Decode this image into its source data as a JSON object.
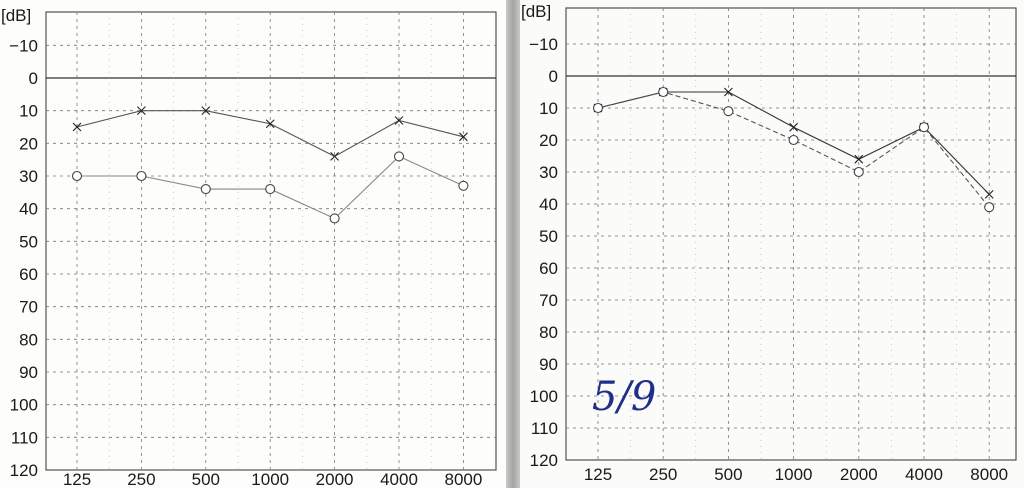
{
  "chart_data": [
    {
      "type": "line",
      "title": "",
      "ylabel": "[dB]",
      "xlabel": "",
      "x_scale": "log",
      "y_inverted": true,
      "ylim": [
        -20,
        120
      ],
      "y_ticks": [
        "−10",
        "0",
        "10",
        "20",
        "30",
        "40",
        "50",
        "60",
        "70",
        "80",
        "90",
        "100",
        "110",
        "120"
      ],
      "y_tick_values": [
        -10,
        0,
        10,
        20,
        30,
        40,
        50,
        60,
        70,
        80,
        90,
        100,
        110,
        120
      ],
      "categories": [
        "125",
        "250",
        "500",
        "1000",
        "2000",
        "4000",
        "8000"
      ],
      "grid": true,
      "reference_line": 0,
      "series": [
        {
          "marker": "x",
          "style": "solid",
          "color": "#555555",
          "values": [
            15,
            10,
            10,
            14,
            24,
            13,
            18
          ]
        },
        {
          "marker": "o",
          "style": "solid",
          "color": "#888888",
          "values": [
            30,
            30,
            34,
            34,
            43,
            24,
            33
          ]
        }
      ]
    },
    {
      "type": "line",
      "title": "",
      "ylabel": "[dB]",
      "xlabel": "",
      "x_scale": "log",
      "y_inverted": true,
      "ylim": [
        -20,
        120
      ],
      "y_ticks": [
        "−10",
        "0",
        "10",
        "20",
        "30",
        "40",
        "50",
        "60",
        "70",
        "80",
        "90",
        "100",
        "110",
        "120"
      ],
      "y_tick_values": [
        -10,
        0,
        10,
        20,
        30,
        40,
        50,
        60,
        70,
        80,
        90,
        100,
        110,
        120
      ],
      "categories": [
        "125",
        "250",
        "500",
        "1000",
        "2000",
        "4000",
        "8000"
      ],
      "grid": true,
      "reference_line": 0,
      "annotation": "5/9",
      "series": [
        {
          "marker": "x",
          "style": "solid",
          "color": "#333333",
          "values": [
            10,
            5,
            5,
            16,
            26,
            16,
            37
          ]
        },
        {
          "marker": "o",
          "style": "dashed",
          "color": "#555555",
          "values": [
            10,
            5,
            11,
            20,
            30,
            16,
            41
          ]
        }
      ]
    }
  ]
}
